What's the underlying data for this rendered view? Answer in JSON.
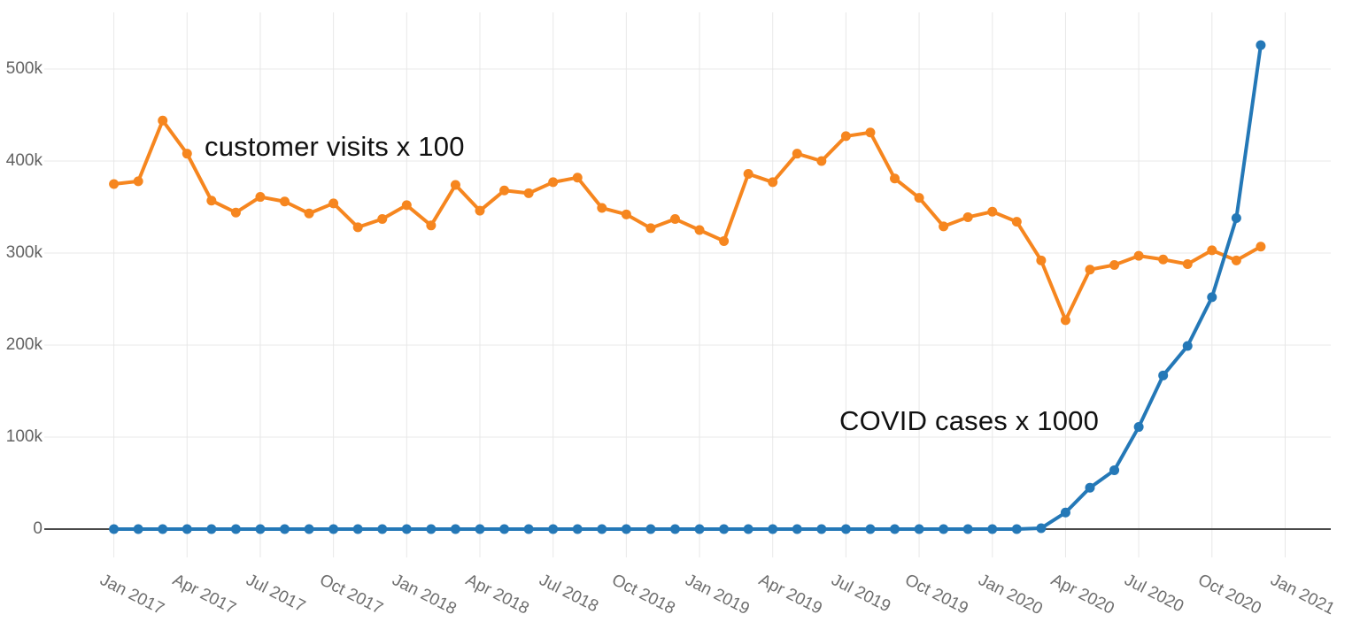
{
  "chart_data": {
    "type": "line",
    "title": "",
    "grid": true,
    "legend_position": "none",
    "values_unit": "k (axis shows thousands)",
    "x_range_hint": "monthly points, Jan 2017 through Dec 2020",
    "x_axis": {
      "tick_labels": [
        "Jan 2017",
        "Apr 2017",
        "Jul 2017",
        "Oct 2017",
        "Jan 2018",
        "Apr 2018",
        "Jul 2018",
        "Oct 2018",
        "Jan 2019",
        "Apr 2019",
        "Jul 2019",
        "Oct 2019",
        "Jan 2020",
        "Apr 2020",
        "Jul 2020",
        "Oct 2020",
        "Jan 2021"
      ],
      "tick_month_interval": 3
    },
    "y_axis": {
      "tick_labels": [
        "0",
        "100k",
        "200k",
        "300k",
        "400k",
        "500k"
      ],
      "tick_values_k": [
        0,
        100,
        200,
        300,
        400,
        500
      ],
      "ylim_k": [
        -28,
        562
      ]
    },
    "series": [
      {
        "name": "customer visits x 100",
        "color": "#f6861f",
        "values_k": [
          375,
          378,
          444,
          408,
          357,
          344,
          361,
          356,
          343,
          354,
          328,
          337,
          352,
          330,
          374,
          346,
          368,
          365,
          377,
          382,
          349,
          342,
          327,
          337,
          325,
          313,
          386,
          377,
          408,
          400,
          427,
          431,
          381,
          360,
          329,
          339,
          345,
          334,
          292,
          227,
          282,
          287,
          297,
          293,
          288,
          303,
          292,
          307
        ]
      },
      {
        "name": "COVID cases x 1000",
        "color": "#2478b7",
        "values_k": [
          0,
          0,
          0,
          0,
          0,
          0,
          0,
          0,
          0,
          0,
          0,
          0,
          0,
          0,
          0,
          0,
          0,
          0,
          0,
          0,
          0,
          0,
          0,
          0,
          0,
          0,
          0,
          0,
          0,
          0,
          0,
          0,
          0,
          0,
          0,
          0,
          0,
          0,
          1,
          18,
          45,
          64,
          111,
          167,
          199,
          252,
          338,
          526
        ]
      }
    ],
    "annotations": [
      {
        "text": "customer visits x 100",
        "color": "#111111"
      },
      {
        "text": "COVID cases x 1000",
        "color": "#111111"
      }
    ],
    "colors": {
      "gridline": "#e8e8e8",
      "zero_line": "#4a4a4a",
      "axis_label": "#636363",
      "background": "#ffffff"
    }
  }
}
